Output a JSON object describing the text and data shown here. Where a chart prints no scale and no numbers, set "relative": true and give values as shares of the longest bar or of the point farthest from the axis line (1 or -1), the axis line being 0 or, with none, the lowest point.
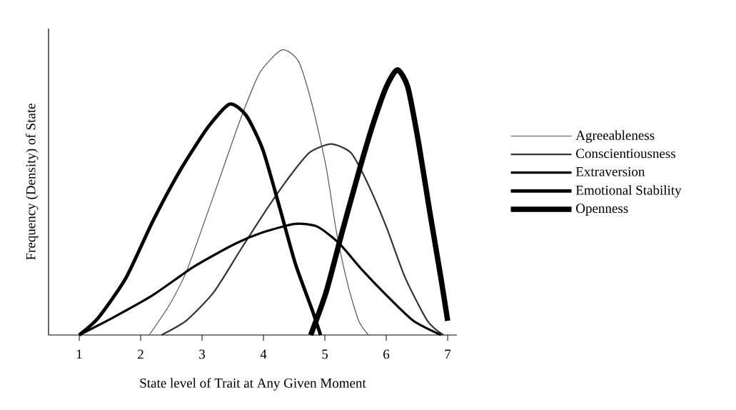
{
  "chart_data": {
    "type": "line",
    "relative": true,
    "xlabel": "State level of Trait at Any Given Moment",
    "ylabel": "Frequency (Density) of State",
    "xlim": [
      0.5,
      7.15
    ],
    "xticks": [
      1,
      2,
      3,
      4,
      5,
      6,
      7
    ],
    "legend": "right",
    "marker": "none",
    "line_style": "solid",
    "grid": false,
    "series": [
      {
        "name": "Agreeableness",
        "color": "#555555",
        "x": [
          2.14,
          2.47,
          2.74,
          3.01,
          3.32,
          3.63,
          3.94,
          4.3,
          4.57,
          4.79,
          5.02,
          5.19,
          5.37,
          5.55,
          5.71
        ],
        "values": [
          0,
          0.106,
          0.22,
          0.38,
          0.57,
          0.76,
          0.92,
          1.0,
          0.96,
          0.81,
          0.59,
          0.36,
          0.18,
          0.05,
          0
        ]
      },
      {
        "name": "Conscientiousness",
        "color": "#333333",
        "x": [
          2.34,
          2.74,
          3.19,
          3.63,
          4.08,
          4.44,
          4.75,
          5.1,
          5.42,
          5.68,
          6.0,
          6.31,
          6.67,
          6.93
        ],
        "values": [
          0,
          0.05,
          0.15,
          0.3,
          0.45,
          0.56,
          0.64,
          0.67,
          0.64,
          0.54,
          0.38,
          0.2,
          0.05,
          0
        ]
      },
      {
        "name": "Extraversion",
        "color": "#000000",
        "x": [
          1.0,
          1.54,
          2.2,
          2.87,
          3.54,
          3.99,
          4.52,
          4.88,
          5.24,
          5.6,
          6.0,
          6.44,
          6.89
        ],
        "values": [
          0,
          0.06,
          0.14,
          0.24,
          0.32,
          0.36,
          0.39,
          0.38,
          0.32,
          0.23,
          0.14,
          0.05,
          0
        ]
      },
      {
        "name": "Emotional Stability",
        "color": "#000000",
        "x": [
          1.0,
          1.31,
          1.76,
          2.2,
          2.65,
          3.1,
          3.45,
          3.72,
          3.99,
          4.26,
          4.52,
          4.79,
          4.93
        ],
        "values": [
          0,
          0.06,
          0.2,
          0.4,
          0.58,
          0.73,
          0.81,
          0.77,
          0.65,
          0.45,
          0.25,
          0.09,
          0
        ]
      },
      {
        "name": "Openness",
        "color": "#000000",
        "x": [
          4.77,
          5.02,
          5.28,
          5.55,
          5.77,
          6.0,
          6.18,
          6.35,
          6.53,
          6.71,
          6.89,
          7.0
        ],
        "values": [
          0,
          0.15,
          0.36,
          0.57,
          0.73,
          0.87,
          0.93,
          0.87,
          0.67,
          0.43,
          0.2,
          0.05
        ]
      }
    ]
  }
}
